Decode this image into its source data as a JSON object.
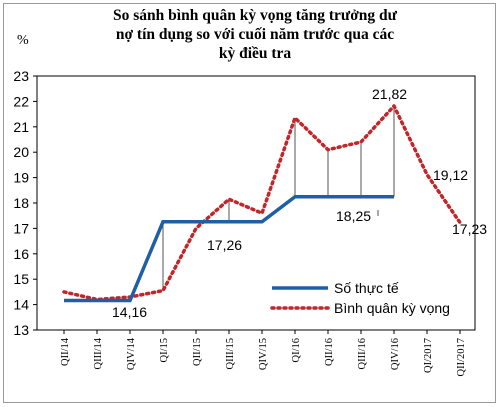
{
  "chart_data": {
    "type": "line",
    "title_lines": [
      "So sánh bình quân kỳ vọng tăng trưởng dư",
      "nợ tín dụng  so với cuối năm trước qua các",
      "kỳ điều tra"
    ],
    "ylabel": "%",
    "ylim": [
      13,
      23
    ],
    "yticks": [
      "13",
      "14",
      "15",
      "16",
      "17",
      "18",
      "19",
      "20",
      "21",
      "22",
      "23"
    ],
    "categories": [
      "QII/14",
      "QIII/14",
      "QIV/14",
      "QI/15",
      "QII/15",
      "QIII/15",
      "QIV/15",
      "QI/16",
      "QII/16",
      "QIII/16",
      "QIV/16",
      "QI/2017",
      "QII/2017"
    ],
    "series": [
      {
        "name": "Số thực tế",
        "color": "#1f5fa6",
        "style": "solid",
        "values": [
          14.16,
          14.16,
          14.16,
          17.26,
          17.26,
          17.26,
          17.26,
          18.25,
          18.25,
          18.25,
          18.25,
          null,
          null
        ]
      },
      {
        "name": "Bình quân kỳ vọng",
        "color": "#c0262a",
        "style": "dotted",
        "values": [
          14.5,
          14.2,
          14.3,
          14.55,
          17.0,
          18.15,
          17.6,
          21.35,
          20.1,
          20.4,
          21.82,
          19.12,
          17.23
        ]
      }
    ],
    "annotations": [
      {
        "text": "14,16"
      },
      {
        "text": "17,26"
      },
      {
        "text": "18,25"
      },
      {
        "text": "21,82"
      },
      {
        "text": "19,12"
      },
      {
        "text": "17,23"
      }
    ],
    "legend_position": "bottom-right",
    "grid": false
  }
}
